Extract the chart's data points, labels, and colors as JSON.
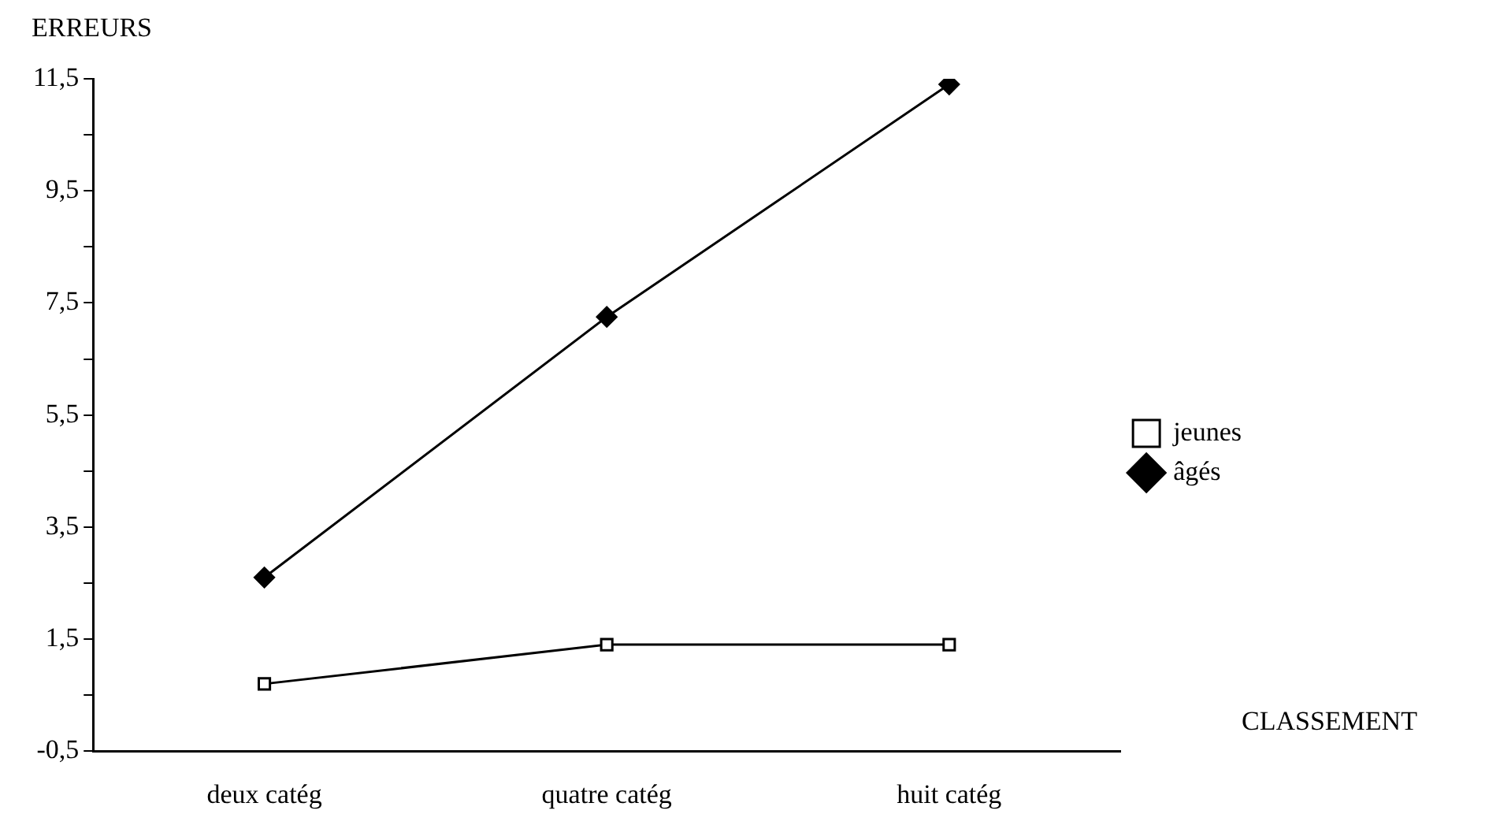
{
  "chart_data": {
    "type": "line",
    "ylabel": "ERREURS",
    "xlabel": "CLASSEMENT",
    "categories": [
      "deux catég",
      "quatre catég",
      "huit catég"
    ],
    "series": [
      {
        "name": "jeunes",
        "color": "#000000",
        "marker": "square",
        "values": [
          0.7,
          1.4,
          1.4
        ]
      },
      {
        "name": "âgés",
        "color": "#000000",
        "marker": "diamond",
        "values": [
          2.6,
          7.25,
          11.4
        ]
      }
    ],
    "ylim": [
      -0.5,
      11.5
    ],
    "yticks": [
      {
        "value": -0.5,
        "label": "-0,5"
      },
      {
        "value": 0.5,
        "label": null
      },
      {
        "value": 1.5,
        "label": "1,5"
      },
      {
        "value": 2.5,
        "label": null
      },
      {
        "value": 3.5,
        "label": "3,5"
      },
      {
        "value": 4.5,
        "label": null
      },
      {
        "value": 5.5,
        "label": "5,5"
      },
      {
        "value": 6.5,
        "label": null
      },
      {
        "value": 7.5,
        "label": "7,5"
      },
      {
        "value": 8.5,
        "label": null
      },
      {
        "value": 9.5,
        "label": "9,5"
      },
      {
        "value": 10.5,
        "label": null
      },
      {
        "value": 11.5,
        "label": "11,5"
      }
    ],
    "grid": false,
    "legend": "right"
  }
}
